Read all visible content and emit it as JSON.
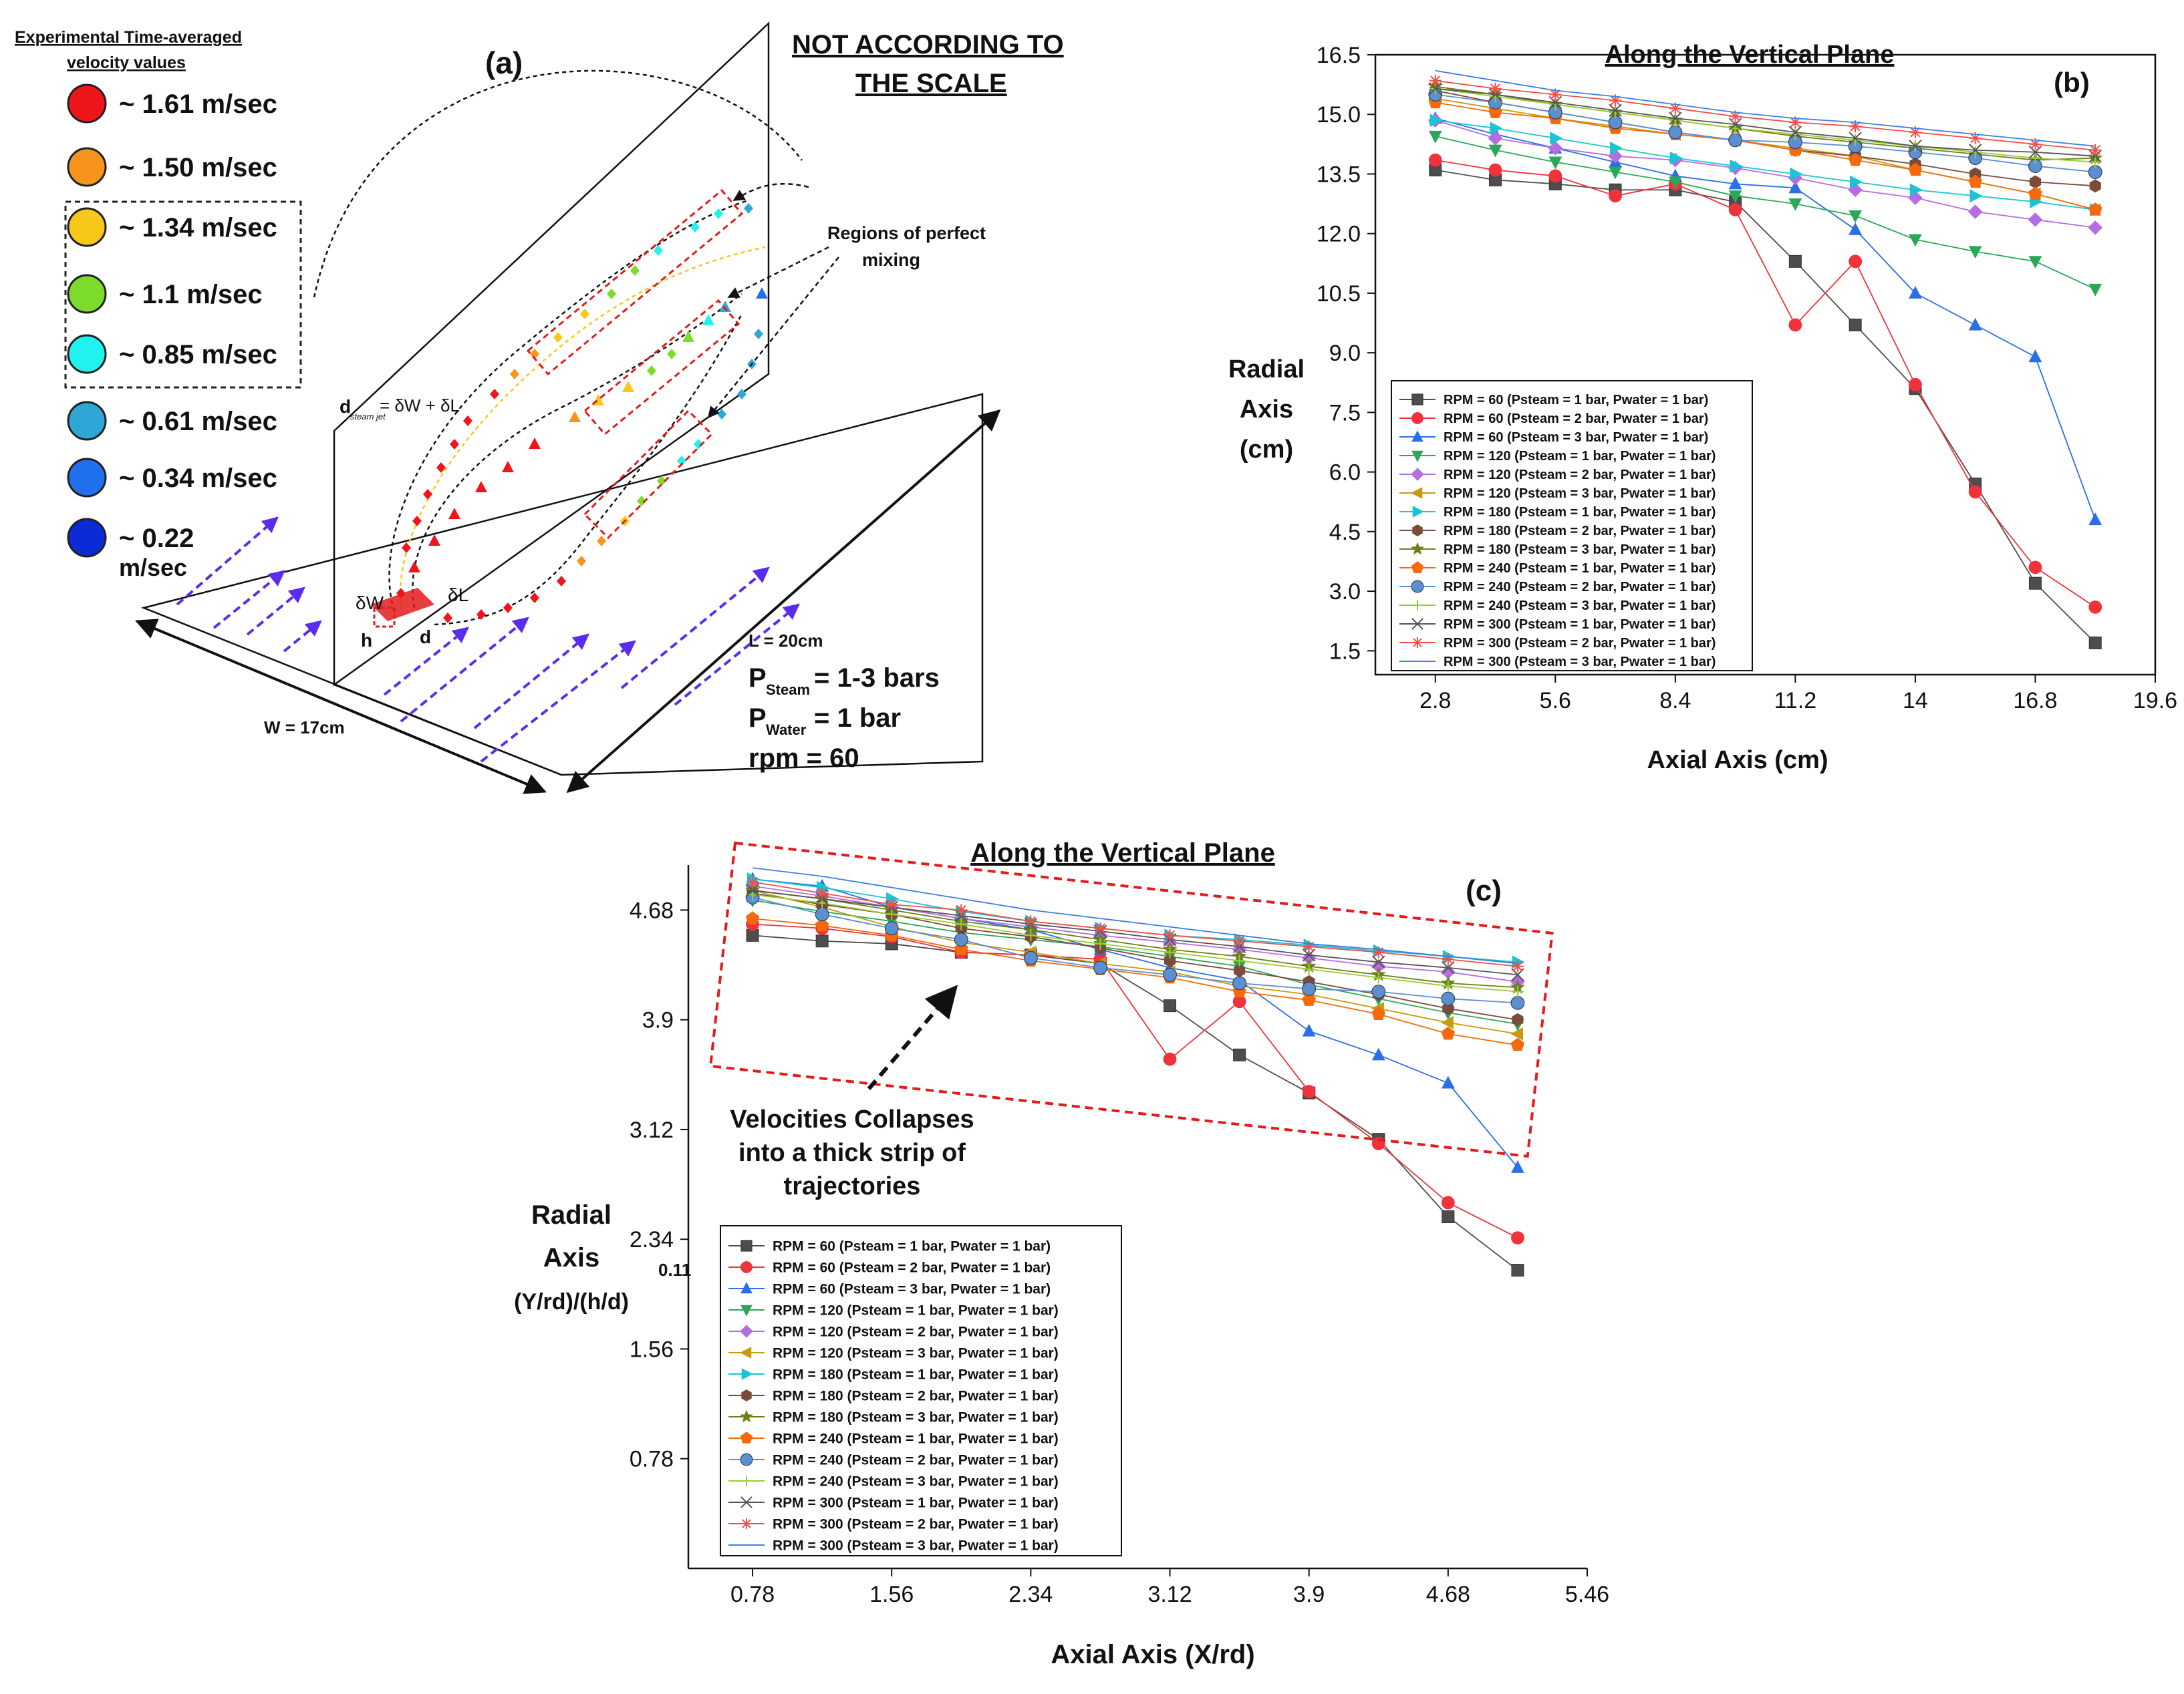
{
  "panel_a": {
    "label": "(a)",
    "legend_title_line1": "Experimental Time-averaged",
    "legend_title_line2": "velocity values",
    "legend": [
      {
        "label": "~ 1.61 m/sec",
        "color": "#f0151b"
      },
      {
        "label": "~ 1.50 m/sec",
        "color": "#f7941d"
      },
      {
        "label": "~ 1.34 m/sec",
        "color": "#f7c719"
      },
      {
        "label": "~ 1.1 m/sec",
        "color": "#7ddc2b"
      },
      {
        "label": "~ 0.85 m/sec",
        "color": "#20f2f0"
      },
      {
        "label": "~ 0.61 m/sec",
        "color": "#2ea7d6"
      },
      {
        "label": "~ 0.34 m/sec",
        "color": "#1f6fee"
      },
      {
        "label": "~ 0.22",
        "color": "#0a2bd6"
      }
    ],
    "legend_last_unit": "m/sec",
    "not_scale_line1": "NOT ACCORDING TO",
    "not_scale_line2": "THE SCALE",
    "regions_line1": "Regions of perfect",
    "regions_line2": "mixing",
    "d_label": "d",
    "d_sub": "steam jet",
    "d_expr": "= δW + δL",
    "delta_w": "δW",
    "delta_l": "δL",
    "h": "h",
    "d": "d",
    "L": "L = 20cm",
    "W": "W = 17cm",
    "p_steam_main": "P",
    "p_steam_sub": "Steam",
    "p_steam_val": " = 1-3 bars",
    "p_water_main": "P",
    "p_water_sub": "Water",
    "p_water_val": " = 1 bar",
    "rpm": "rpm  = 60"
  },
  "annotation_c": {
    "line1": "Velocities Collapses",
    "line2": "into a thick strip of",
    "line3": "trajectories"
  },
  "chart_data": [
    {
      "id": "b",
      "type": "line",
      "panel_label": "(b)",
      "title": "Along the Vertical Plane",
      "xlabel": "Axial Axis (cm)",
      "ylabel_lines": [
        "Radial",
        "Axis",
        "(cm)"
      ],
      "xlim": [
        1.4,
        19.6
      ],
      "ylim": [
        0.9,
        16.5
      ],
      "xticks": [
        2.8,
        5.6,
        8.4,
        11.2,
        14,
        16.8,
        19.6
      ],
      "xtick_labels": [
        "2.8",
        "5.6",
        "8.4",
        "11.2",
        "14",
        "16.8",
        "19.6"
      ],
      "yticks": [
        1.5,
        3.0,
        4.5,
        6.0,
        7.5,
        9.0,
        10.5,
        12.0,
        13.5,
        15.0,
        16.5
      ],
      "ytick_labels": [
        "1.5",
        "3.0",
        "4.5",
        "6.0",
        "7.5",
        "9.0",
        "10.5",
        "12.0",
        "13.5",
        "15.0",
        "16.5"
      ],
      "legend_position": "bottom-left",
      "x": [
        2.8,
        4.2,
        5.6,
        7.0,
        8.4,
        9.8,
        11.2,
        12.6,
        14.0,
        15.4,
        16.8,
        18.2
      ],
      "series": [
        {
          "name": "RPM = 60 (Psteam = 1 bar, Pwater = 1 bar)",
          "values": [
            13.6,
            13.35,
            13.25,
            13.1,
            13.1,
            12.8,
            11.3,
            9.7,
            8.1,
            5.7,
            3.2,
            1.7
          ]
        },
        {
          "name": "RPM = 60 (Psteam = 2 bar, Pwater = 1 bar)",
          "values": [
            13.85,
            13.6,
            13.45,
            12.95,
            13.25,
            12.6,
            9.7,
            11.3,
            8.2,
            5.5,
            3.6,
            2.6
          ]
        },
        {
          "name": "RPM = 60 (Psteam = 3 bar, Pwater = 1 bar)",
          "values": [
            14.9,
            14.5,
            14.15,
            13.8,
            13.45,
            13.25,
            13.15,
            12.1,
            10.5,
            9.7,
            8.9,
            4.8
          ]
        },
        {
          "name": "RPM = 120 (Psteam = 1 bar, Pwater = 1 bar)",
          "values": [
            14.45,
            14.1,
            13.8,
            13.55,
            13.3,
            12.95,
            12.75,
            12.45,
            11.85,
            11.55,
            11.3,
            10.6
          ]
        },
        {
          "name": "RPM = 120 (Psteam = 2 bar, Pwater = 1 bar)",
          "values": [
            14.85,
            14.4,
            14.15,
            13.95,
            13.85,
            13.65,
            13.4,
            13.1,
            12.9,
            12.55,
            12.35,
            12.15
          ]
        },
        {
          "name": "RPM = 120 (Psteam = 3 bar, Pwater = 1 bar)",
          "values": [
            15.4,
            15.15,
            14.9,
            14.7,
            14.5,
            14.35,
            14.15,
            13.95,
            13.6,
            13.3,
            13.0,
            12.6
          ]
        },
        {
          "name": "RPM = 180 (Psteam = 1 bar, Pwater = 1 bar)",
          "values": [
            14.85,
            14.65,
            14.4,
            14.15,
            13.9,
            13.7,
            13.5,
            13.3,
            13.1,
            12.95,
            12.8,
            12.6
          ]
        },
        {
          "name": "RPM = 180 (Psteam = 2 bar, Pwater = 1 bar)",
          "values": [
            15.6,
            15.3,
            15.05,
            14.8,
            14.55,
            14.35,
            14.1,
            13.95,
            13.75,
            13.5,
            13.3,
            13.2
          ]
        },
        {
          "name": "RPM = 180 (Psteam = 3 bar, Pwater = 1 bar)",
          "values": [
            15.7,
            15.5,
            15.25,
            15.05,
            14.85,
            14.65,
            14.45,
            14.3,
            14.15,
            14.0,
            13.85,
            13.9
          ]
        },
        {
          "name": "RPM = 240 (Psteam = 1 bar, Pwater = 1 bar)",
          "values": [
            15.3,
            15.05,
            14.9,
            14.65,
            14.5,
            14.35,
            14.1,
            13.85,
            13.6,
            13.3,
            13.0,
            12.6
          ]
        },
        {
          "name": "RPM = 240 (Psteam = 2 bar, Pwater = 1 bar)",
          "values": [
            15.5,
            15.3,
            15.05,
            14.8,
            14.55,
            14.35,
            14.3,
            14.2,
            14.05,
            13.9,
            13.7,
            13.55
          ]
        },
        {
          "name": "RPM = 240 (Psteam = 3 bar, Pwater = 1 bar)",
          "values": [
            15.65,
            15.45,
            15.25,
            15.05,
            14.85,
            14.65,
            14.5,
            14.35,
            14.2,
            14.05,
            13.9,
            13.8
          ]
        },
        {
          "name": "RPM = 300 (Psteam = 1 bar, Pwater = 1 bar)",
          "values": [
            15.65,
            15.5,
            15.3,
            15.1,
            14.9,
            14.75,
            14.55,
            14.4,
            14.2,
            14.1,
            14.05,
            13.95
          ]
        },
        {
          "name": "RPM = 300 (Psteam = 2 bar, Pwater = 1 bar)",
          "values": [
            15.85,
            15.65,
            15.5,
            15.35,
            15.15,
            14.95,
            14.8,
            14.7,
            14.55,
            14.4,
            14.25,
            14.1
          ]
        },
        {
          "name": "RPM = 300 (Psteam = 3 bar, Pwater = 1 bar)",
          "values": [
            16.1,
            15.85,
            15.6,
            15.45,
            15.25,
            15.05,
            14.9,
            14.8,
            14.65,
            14.5,
            14.35,
            14.2
          ]
        }
      ]
    },
    {
      "id": "c",
      "type": "line",
      "panel_label": "(c)",
      "title": "Along the Vertical Plane",
      "xlabel": "Axial Axis (X/rd)",
      "ylabel_lines": [
        "Radial",
        "Axis",
        "(Y/rd)/(h/d)"
      ],
      "ylabel_superscript": "0.11",
      "xlim": [
        0.42,
        5.46
      ],
      "ylim": [
        0.0,
        5.0
      ],
      "xticks": [
        0.78,
        1.56,
        2.34,
        3.12,
        3.9,
        4.68,
        5.46
      ],
      "xtick_labels": [
        "0.78",
        "1.56",
        "2.34",
        "3.12",
        "3.9",
        "4.68",
        "5.46"
      ],
      "yticks": [
        0.78,
        1.56,
        2.34,
        3.12,
        3.9,
        4.68
      ],
      "ytick_labels": [
        "0.78",
        "1.56",
        "2.34",
        "3.12",
        "3.9",
        "4.68"
      ],
      "legend_position": "bottom-left",
      "x": [
        0.78,
        1.17,
        1.56,
        1.95,
        2.34,
        2.73,
        3.12,
        3.51,
        3.9,
        4.29,
        4.68,
        5.07
      ],
      "series": [
        {
          "name": "RPM = 60 (Psteam = 1 bar, Pwater = 1 bar)",
          "values": [
            4.5,
            4.46,
            4.44,
            4.38,
            4.36,
            4.3,
            4.0,
            3.65,
            3.38,
            3.05,
            2.5,
            2.12
          ]
        },
        {
          "name": "RPM = 60 (Psteam = 2 bar, Pwater = 1 bar)",
          "values": [
            4.58,
            4.55,
            4.49,
            4.38,
            4.36,
            4.33,
            3.62,
            4.03,
            3.39,
            3.02,
            2.6,
            2.35
          ]
        },
        {
          "name": "RPM = 60 (Psteam = 3 bar, Pwater = 1 bar)",
          "values": [
            4.9,
            4.85,
            4.7,
            4.62,
            4.54,
            4.4,
            4.27,
            4.18,
            3.82,
            3.65,
            3.45,
            2.85
          ]
        },
        {
          "name": "RPM = 120 (Psteam = 1 bar, Pwater = 1 bar)",
          "values": [
            4.75,
            4.67,
            4.6,
            4.52,
            4.47,
            4.42,
            4.35,
            4.28,
            4.15,
            4.05,
            3.95,
            3.87
          ]
        },
        {
          "name": "RPM = 120 (Psteam = 2 bar, Pwater = 1 bar)",
          "values": [
            4.85,
            4.78,
            4.7,
            4.62,
            4.56,
            4.5,
            4.45,
            4.4,
            4.34,
            4.28,
            4.24,
            4.17
          ]
        },
        {
          "name": "RPM = 120 (Psteam = 3 bar, Pwater = 1 bar)",
          "values": [
            4.82,
            4.7,
            4.56,
            4.45,
            4.38,
            4.3,
            4.24,
            4.14,
            4.08,
            3.98,
            3.88,
            3.8
          ]
        },
        {
          "name": "RPM = 180 (Psteam = 1 bar, Pwater = 1 bar)",
          "values": [
            4.9,
            4.84,
            4.76,
            4.67,
            4.6,
            4.55,
            4.5,
            4.47,
            4.43,
            4.39,
            4.35,
            4.31
          ]
        },
        {
          "name": "RPM = 180 (Psteam = 2 bar, Pwater = 1 bar)",
          "values": [
            4.8,
            4.72,
            4.65,
            4.55,
            4.49,
            4.41,
            4.32,
            4.25,
            4.17,
            4.08,
            3.98,
            3.9
          ]
        },
        {
          "name": "RPM = 180 (Psteam = 3 bar, Pwater = 1 bar)",
          "values": [
            4.82,
            4.76,
            4.68,
            4.6,
            4.54,
            4.47,
            4.4,
            4.35,
            4.28,
            4.22,
            4.16,
            4.13
          ]
        },
        {
          "name": "RPM = 240 (Psteam = 1 bar, Pwater = 1 bar)",
          "values": [
            4.62,
            4.57,
            4.5,
            4.4,
            4.32,
            4.26,
            4.2,
            4.1,
            4.04,
            3.94,
            3.8,
            3.72
          ]
        },
        {
          "name": "RPM = 240 (Psteam = 2 bar, Pwater = 1 bar)",
          "values": [
            4.77,
            4.65,
            4.55,
            4.47,
            4.34,
            4.27,
            4.22,
            4.16,
            4.12,
            4.1,
            4.05,
            4.02
          ]
        },
        {
          "name": "RPM = 240 (Psteam = 3 bar, Pwater = 1 bar)",
          "values": [
            4.79,
            4.73,
            4.65,
            4.58,
            4.5,
            4.44,
            4.38,
            4.32,
            4.26,
            4.2,
            4.14,
            4.1
          ]
        },
        {
          "name": "RPM = 300 (Psteam = 1 bar, Pwater = 1 bar)",
          "values": [
            4.82,
            4.76,
            4.7,
            4.64,
            4.58,
            4.53,
            4.47,
            4.42,
            4.36,
            4.31,
            4.27,
            4.22
          ]
        },
        {
          "name": "RPM = 300 (Psteam = 2 bar, Pwater = 1 bar)",
          "values": [
            4.88,
            4.8,
            4.72,
            4.68,
            4.6,
            4.55,
            4.5,
            4.46,
            4.42,
            4.38,
            4.33,
            4.28
          ]
        },
        {
          "name": "RPM = 300 (Psteam = 3 bar, Pwater = 1 bar)",
          "values": [
            4.98,
            4.92,
            4.84,
            4.76,
            4.68,
            4.62,
            4.56,
            4.5,
            4.44,
            4.4,
            4.35,
            4.3
          ]
        }
      ]
    }
  ],
  "series_styles": [
    {
      "color": "#4d4d4d",
      "marker": "square"
    },
    {
      "color": "#f0323a",
      "marker": "circle"
    },
    {
      "color": "#2a6ee8",
      "marker": "triangle-up"
    },
    {
      "color": "#2aa858",
      "marker": "triangle-down"
    },
    {
      "color": "#b66de0",
      "marker": "diamond"
    },
    {
      "color": "#c79a10",
      "marker": "triangle-left"
    },
    {
      "color": "#19c5d4",
      "marker": "triangle-right"
    },
    {
      "color": "#7a4a3a",
      "marker": "hexagon"
    },
    {
      "color": "#6f7e1c",
      "marker": "star"
    },
    {
      "color": "#f46a0a",
      "marker": "pentagon"
    },
    {
      "color": "#5b8fd1",
      "marker": "sphere"
    },
    {
      "color": "#9acd32",
      "marker": "plus"
    },
    {
      "color": "#555555",
      "marker": "cross"
    },
    {
      "color": "#f0504a",
      "marker": "asterisk"
    },
    {
      "color": "#3d7fe6",
      "marker": "none"
    }
  ]
}
